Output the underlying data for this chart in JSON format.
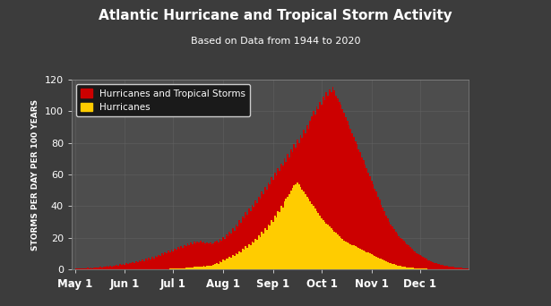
{
  "title": "Atlantic Hurricane and Tropical Storm Activity",
  "subtitle": "Based on Data from 1944 to 2020",
  "ylabel": "STORMS PER DAY PER 100 YEARS",
  "ylim": [
    0,
    120
  ],
  "yticks": [
    0,
    20,
    40,
    60,
    80,
    100,
    120
  ],
  "bg_color": "#3c3c3c",
  "plot_bg_color": "#4d4d4d",
  "grid_color": "#666666",
  "title_color": "#ffffff",
  "label_color": "#ffffff",
  "tick_color": "#ffffff",
  "xtick_labels": [
    "May 1",
    "Jun 1",
    "Jul 1",
    "Aug 1",
    "Sep 1",
    "Oct 1",
    "Nov 1",
    "Dec 1"
  ],
  "xtick_positions": [
    0,
    31,
    61,
    92,
    123,
    153,
    184,
    214
  ],
  "color_total": "#cc0000",
  "color_hurricane": "#ffcc00",
  "legend_label_total": "Hurricanes and Tropical Storms",
  "legend_label_hurricane": "Hurricanes",
  "total_storms": [
    0.5,
    0.4,
    0.6,
    0.5,
    0.7,
    0.5,
    0.8,
    0.6,
    0.9,
    0.7,
    1.0,
    0.8,
    1.1,
    0.9,
    1.3,
    1.0,
    1.5,
    1.2,
    1.7,
    1.4,
    2.0,
    1.6,
    2.2,
    1.9,
    2.5,
    2.1,
    2.8,
    2.4,
    3.1,
    2.7,
    3.5,
    3.0,
    3.8,
    3.3,
    4.2,
    3.7,
    4.6,
    4.0,
    5.0,
    4.4,
    5.5,
    4.8,
    6.0,
    5.3,
    6.6,
    5.8,
    7.2,
    6.4,
    7.9,
    7.0,
    8.6,
    7.7,
    9.3,
    8.4,
    10.1,
    9.2,
    11.0,
    10.0,
    11.8,
    10.8,
    12.5,
    11.5,
    13.2,
    12.2,
    14.0,
    13.0,
    14.8,
    13.7,
    15.5,
    14.5,
    16.2,
    15.2,
    16.8,
    15.8,
    17.3,
    16.3,
    17.8,
    16.7,
    18.0,
    17.0,
    17.5,
    16.5,
    17.2,
    16.2,
    16.8,
    15.8,
    16.5,
    17.5,
    18.0,
    17.0,
    19.0,
    18.0,
    20.5,
    19.5,
    22.0,
    21.0,
    24.0,
    22.5,
    26.0,
    24.5,
    28.5,
    27.0,
    31.0,
    29.5,
    33.5,
    32.0,
    36.0,
    34.5,
    38.5,
    37.0,
    41.0,
    39.5,
    43.5,
    42.0,
    46.0,
    44.5,
    49.0,
    47.5,
    52.0,
    50.5,
    55.0,
    53.5,
    58.0,
    56.5,
    61.0,
    59.5,
    64.0,
    62.5,
    67.0,
    65.5,
    70.0,
    68.0,
    73.0,
    71.0,
    76.0,
    74.0,
    79.0,
    77.0,
    82.0,
    80.0,
    85.0,
    83.0,
    88.0,
    86.0,
    91.0,
    89.0,
    94.0,
    97.0,
    100.0,
    98.0,
    103.0,
    101.0,
    106.0,
    104.0,
    109.0,
    107.0,
    112.0,
    110.0,
    114.0,
    112.0,
    115.5,
    113.0,
    110.0,
    108.0,
    106.0,
    104.0,
    101.0,
    99.0,
    96.0,
    94.0,
    91.0,
    89.0,
    86.0,
    84.0,
    81.0,
    79.0,
    76.0,
    74.0,
    71.0,
    69.0,
    66.0,
    64.0,
    61.0,
    59.0,
    56.0,
    54.0,
    51.0,
    49.0,
    46.0,
    44.0,
    41.0,
    39.0,
    36.5,
    34.0,
    32.0,
    30.0,
    28.5,
    27.0,
    25.5,
    24.0,
    22.5,
    21.0,
    20.0,
    19.0,
    18.0,
    17.0,
    16.0,
    15.0,
    14.0,
    13.0,
    12.0,
    11.2,
    10.4,
    9.7,
    9.0,
    8.3,
    7.7,
    7.1,
    6.5,
    5.9,
    5.4,
    4.9,
    4.5,
    4.1,
    3.8,
    3.5,
    3.2,
    2.9,
    2.6,
    2.4,
    2.2,
    2.0,
    1.8,
    1.6,
    1.5,
    1.4,
    1.3,
    1.2,
    1.1,
    1.0,
    0.9,
    0.8,
    0.7,
    0.6,
    0.6
  ],
  "hurricane_storms": [
    0.0,
    0.0,
    0.0,
    0.0,
    0.0,
    0.0,
    0.0,
    0.0,
    0.0,
    0.0,
    0.0,
    0.0,
    0.0,
    0.0,
    0.0,
    0.0,
    0.0,
    0.0,
    0.0,
    0.0,
    0.0,
    0.0,
    0.0,
    0.0,
    0.0,
    0.0,
    0.0,
    0.0,
    0.0,
    0.0,
    0.0,
    0.0,
    0.0,
    0.0,
    0.0,
    0.0,
    0.0,
    0.0,
    0.0,
    0.0,
    0.0,
    0.0,
    0.0,
    0.0,
    0.0,
    0.0,
    0.0,
    0.0,
    0.0,
    0.0,
    0.0,
    0.0,
    0.0,
    0.0,
    0.0,
    0.1,
    0.1,
    0.2,
    0.2,
    0.3,
    0.3,
    0.4,
    0.4,
    0.5,
    0.5,
    0.6,
    0.6,
    0.7,
    0.8,
    0.9,
    1.0,
    1.1,
    1.2,
    1.3,
    1.4,
    1.5,
    1.6,
    1.7,
    1.8,
    1.9,
    2.0,
    1.8,
    2.2,
    2.0,
    2.4,
    2.2,
    2.8,
    3.5,
    4.0,
    3.5,
    5.0,
    4.5,
    6.0,
    5.5,
    7.0,
    6.5,
    8.0,
    7.5,
    9.0,
    8.5,
    10.0,
    9.5,
    11.5,
    10.8,
    13.0,
    12.2,
    14.5,
    13.8,
    16.0,
    15.3,
    17.5,
    16.8,
    19.5,
    18.5,
    21.5,
    20.5,
    23.5,
    22.5,
    26.0,
    25.0,
    28.5,
    27.5,
    31.0,
    30.0,
    34.0,
    33.0,
    37.0,
    36.0,
    40.0,
    39.0,
    43.0,
    44.5,
    46.0,
    47.5,
    50.0,
    51.5,
    53.0,
    54.0,
    55.0,
    53.5,
    52.0,
    50.5,
    49.0,
    47.5,
    46.0,
    44.5,
    43.0,
    41.5,
    40.0,
    38.5,
    37.0,
    35.5,
    34.0,
    32.5,
    31.0,
    30.0,
    29.0,
    28.0,
    27.0,
    26.0,
    25.0,
    24.0,
    23.0,
    22.0,
    21.0,
    20.0,
    19.0,
    18.0,
    17.5,
    17.0,
    16.5,
    16.0,
    15.5,
    15.0,
    14.5,
    14.0,
    13.5,
    13.0,
    12.5,
    12.0,
    11.5,
    11.0,
    10.5,
    10.0,
    9.5,
    9.0,
    8.5,
    8.0,
    7.5,
    7.0,
    6.5,
    6.0,
    5.5,
    5.0,
    4.5,
    4.0,
    3.7,
    3.4,
    3.1,
    2.8,
    2.5,
    2.2,
    2.0,
    1.8,
    1.6,
    1.4,
    1.3,
    1.2,
    1.1,
    1.0,
    0.9,
    0.8,
    0.7,
    0.6,
    0.5,
    0.4,
    0.4,
    0.3,
    0.3,
    0.2,
    0.2,
    0.2,
    0.1,
    0.1,
    0.1,
    0.1,
    0.1,
    0.0,
    0.0,
    0.0,
    0.0,
    0.0,
    0.0,
    0.0,
    0.0,
    0.0,
    0.0,
    0.0,
    0.0,
    0.0,
    0.0,
    0.0,
    0.0,
    0.0,
    0.0
  ]
}
